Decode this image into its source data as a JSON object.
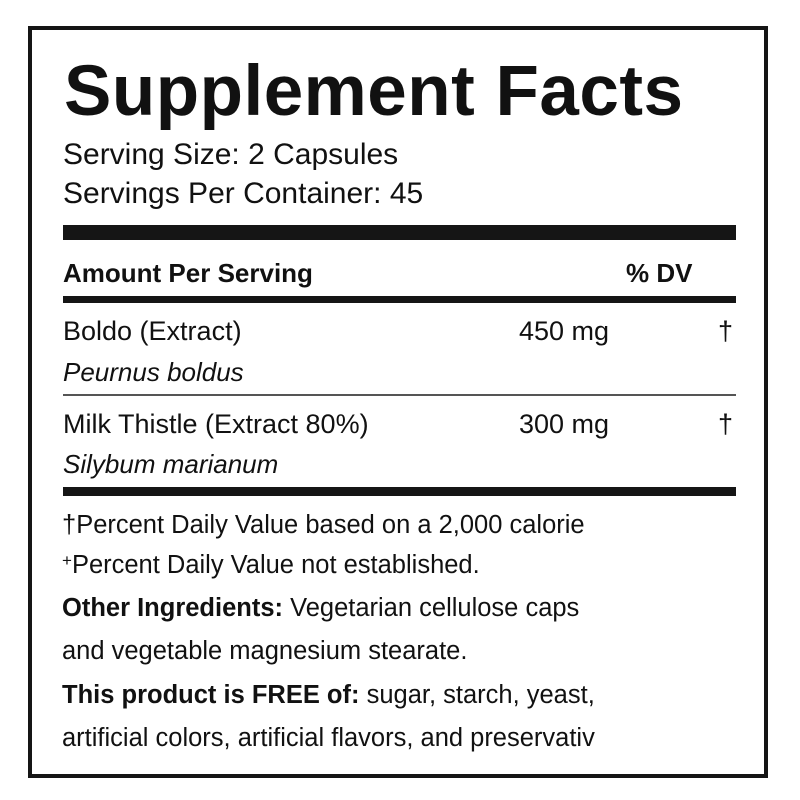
{
  "title": "Supplement Facts",
  "serving_size": "Serving Size: 2 Capsules",
  "servings_per_container": "Servings Per Container: 45",
  "header": {
    "amount": "Amount Per Serving",
    "dv": "% DV"
  },
  "ingredients": [
    {
      "name": "Boldo (Extract)",
      "latin": "Peurnus boldus",
      "amount": "450 mg",
      "dv": "†"
    },
    {
      "name": "Milk Thistle (Extract 80%)",
      "latin": "Silybum marianum",
      "amount": "300 mg",
      "dv": "†"
    }
  ],
  "footnotes": [
    {
      "symbol": "†",
      "text": "Percent Daily Value based on a 2,000 calorie"
    },
    {
      "symbol": "+",
      "text": "Percent Daily Value not established."
    }
  ],
  "other_ingredients": {
    "label": "Other Ingredients:",
    "line1": " Vegetarian cellulose caps",
    "line2": "and vegetable magnesium stearate."
  },
  "free_of": {
    "label": "This product is FREE of:",
    "line1": " sugar, starch, yeast,",
    "line2": "artificial colors, artificial flavors, and preservativ"
  }
}
